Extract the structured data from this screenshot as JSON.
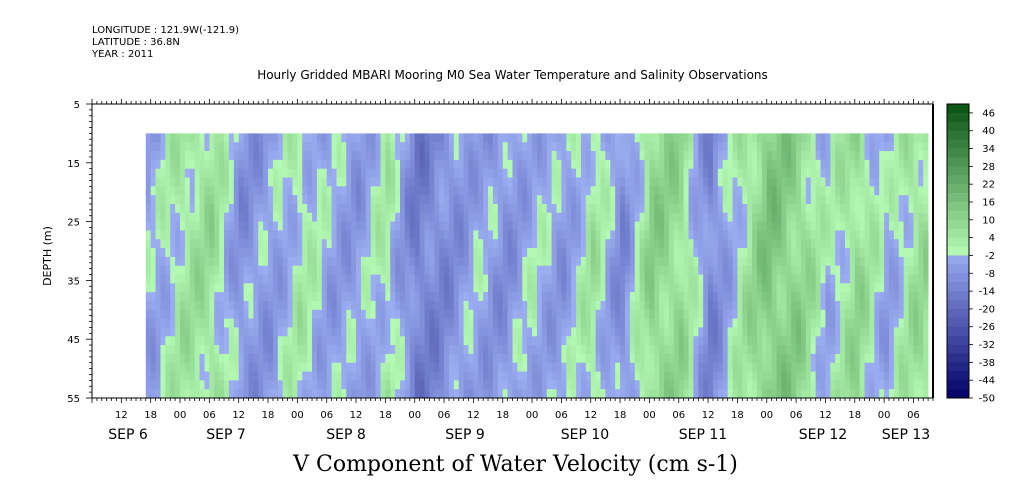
{
  "header": {
    "longitude": "LONGITUDE : 121.9W(-121.9)",
    "latitude": "LATITUDE : 36.8N",
    "year": "YEAR : 2011"
  },
  "chart_data": {
    "type": "heatmap",
    "title": "Hourly Gridded MBARI Mooring M0 Sea Water Temperature and Salinity Observations",
    "ylabel": "DEPTH (m)",
    "variable_label": "V Component of Water Velocity (cm s-1)",
    "y_axis": {
      "reversed": true,
      "range": [
        5,
        55
      ],
      "ticks": [
        5,
        15,
        25,
        35,
        45,
        55
      ],
      "data_depth_range": [
        10,
        55
      ]
    },
    "x_axis": {
      "hour_ticks": [
        "12",
        "18",
        "00",
        "06",
        "12",
        "18",
        "00",
        "06",
        "12",
        "18",
        "00",
        "06",
        "12",
        "18",
        "00",
        "06",
        "12",
        "18",
        "00",
        "06",
        "12",
        "18",
        "00",
        "06",
        "12",
        "18",
        "00",
        "06"
      ],
      "day_labels": [
        "SEP 6",
        "SEP 7",
        "SEP 8",
        "SEP 9",
        "SEP 10",
        "SEP 11",
        "SEP 12",
        "SEP 13"
      ],
      "range": [
        "2011-09-06T06:00",
        "2011-09-13T10:00"
      ],
      "data_start": "2011-09-06T17:00"
    },
    "colorbar": {
      "labels": [
        "46",
        "40",
        "34",
        "28",
        "22",
        "16",
        "10",
        "4",
        "-2",
        "-8",
        "-14",
        "-20",
        "-26",
        "-32",
        "-38",
        "-44",
        "-50"
      ],
      "min": -50,
      "max": 49,
      "step": 3
    },
    "time_series": {
      "times": [
        "09-06 18",
        "09-07 00",
        "09-07 06",
        "09-07 12",
        "09-07 18",
        "09-08 00",
        "09-08 06",
        "09-08 12",
        "09-08 18",
        "09-09 00",
        "09-09 06",
        "09-09 12",
        "09-09 18",
        "09-10 00",
        "09-10 06",
        "09-10 12",
        "09-10 18",
        "09-11 00",
        "09-11 06",
        "09-11 12",
        "09-11 18",
        "09-12 00",
        "09-12 06",
        "09-12 12",
        "09-12 18",
        "09-13 00",
        "09-13 06"
      ],
      "approx_v_cms": [
        -4,
        4,
        6,
        -8,
        -6,
        2,
        -4,
        -6,
        2,
        -14,
        -10,
        -4,
        -8,
        -2,
        -6,
        4,
        -10,
        10,
        8,
        -12,
        2,
        14,
        10,
        -2,
        8,
        -4,
        6
      ]
    }
  }
}
